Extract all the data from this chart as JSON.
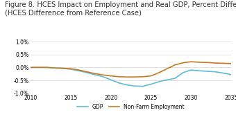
{
  "title_line1": "Figure 8. HCES Impact on Employment and Real GDP, Percent Difference",
  "title_line2": "(HCES Difference from Reference Case)",
  "title_fontsize": 7.2,
  "xlim": [
    2010,
    2035
  ],
  "ylim": [
    -1.0,
    1.0
  ],
  "xticks": [
    2010,
    2015,
    2020,
    2025,
    2030,
    2035
  ],
  "yticks": [
    -1.0,
    -0.5,
    0.0,
    0.5,
    1.0
  ],
  "ytick_labels": [
    "-1.0%",
    "-0.5%",
    "0.0%",
    "0.5%",
    "1.0%"
  ],
  "gdp_color": "#5BBCD6",
  "nonfarm_color": "#C97820",
  "legend_labels": [
    "GDP",
    "Non-Farm Employment"
  ],
  "gdp_x": [
    2010,
    2011,
    2012,
    2013,
    2014,
    2015,
    2016,
    2017,
    2018,
    2019,
    2020,
    2021,
    2022,
    2023,
    2024,
    2025,
    2026,
    2027,
    2028,
    2029,
    2030,
    2031,
    2032,
    2033,
    2034,
    2035
  ],
  "gdp_y": [
    0.0,
    0.0,
    0.0,
    -0.02,
    -0.04,
    -0.07,
    -0.13,
    -0.2,
    -0.28,
    -0.36,
    -0.48,
    -0.6,
    -0.68,
    -0.72,
    -0.73,
    -0.65,
    -0.55,
    -0.48,
    -0.42,
    -0.2,
    -0.1,
    -0.13,
    -0.15,
    -0.17,
    -0.22,
    -0.28
  ],
  "nonfarm_x": [
    2010,
    2011,
    2012,
    2013,
    2014,
    2015,
    2016,
    2017,
    2018,
    2019,
    2020,
    2021,
    2022,
    2023,
    2024,
    2025,
    2026,
    2027,
    2028,
    2029,
    2030,
    2031,
    2032,
    2033,
    2034,
    2035
  ],
  "nonfarm_y": [
    0.0,
    0.0,
    0.0,
    -0.02,
    -0.03,
    -0.05,
    -0.1,
    -0.17,
    -0.24,
    -0.29,
    -0.33,
    -0.36,
    -0.37,
    -0.37,
    -0.36,
    -0.33,
    -0.2,
    -0.05,
    0.1,
    0.18,
    0.22,
    0.2,
    0.19,
    0.17,
    0.16,
    0.15
  ],
  "background_color": "#ffffff",
  "grid_color": "#d5d5d5",
  "line_width": 1.2
}
